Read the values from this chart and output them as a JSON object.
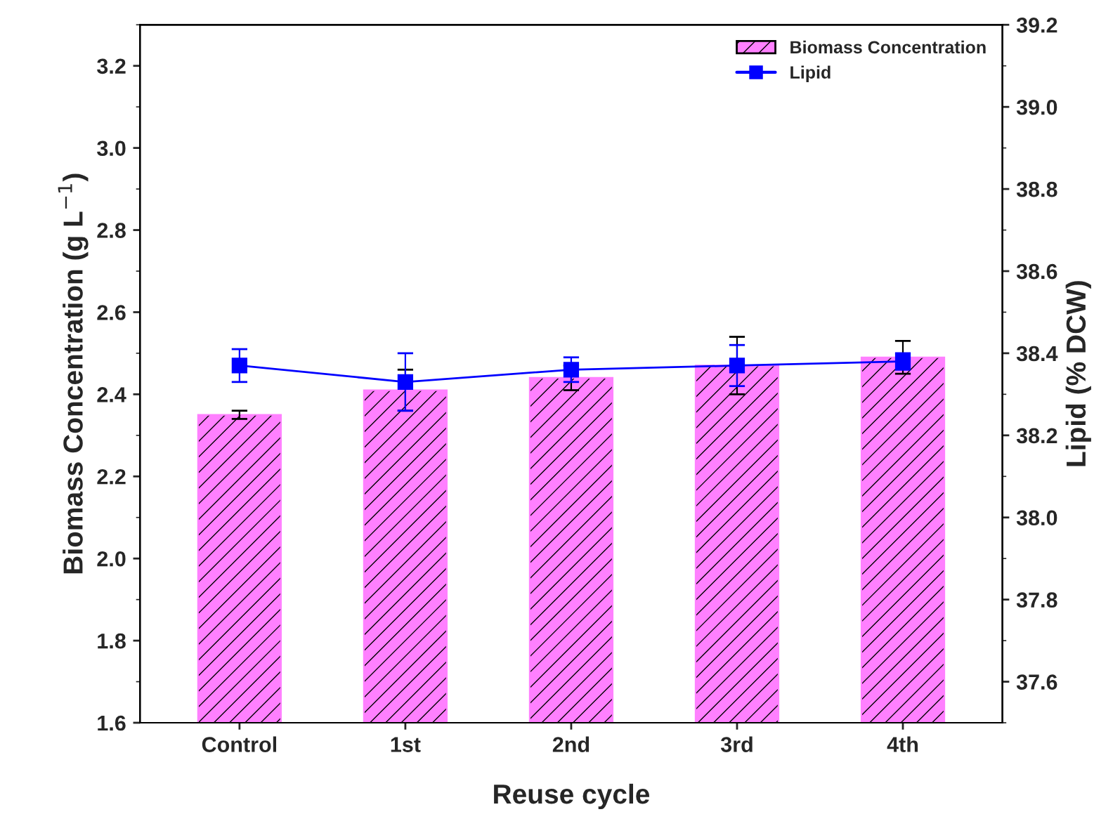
{
  "chart_data": {
    "type": "bar",
    "xlabel": "Reuse cycle",
    "ylabel": "Biomass Concentration (g L$^{−1}$)",
    "y2label": "Lipid (% DCW)",
    "categories": [
      "Control",
      "1st",
      "2nd",
      "3rd",
      "4th"
    ],
    "series": [
      {
        "name": "Biomass Concentration",
        "color": "#ff80ff",
        "values": [
          2.35,
          2.41,
          2.44,
          2.47,
          2.49
        ],
        "errors": [
          0.01,
          0.05,
          0.03,
          0.07,
          0.04
        ]
      },
      {
        "name": "Lipid",
        "type": "line",
        "axis": "y2",
        "color": "#0000ff",
        "marker": "square",
        "values": [
          38.37,
          38.33,
          38.36,
          38.37,
          38.38
        ],
        "errors": [
          0.04,
          0.07,
          0.03,
          0.05,
          0.02
        ]
      }
    ],
    "ylim": [
      1.6,
      3.3
    ],
    "yticks": [
      1.6,
      1.8,
      {
        "value": 2,
        "label": "2.0"
      },
      2.2,
      2.4,
      2.6,
      2.8,
      {
        "value": 3,
        "label": "3.0"
      },
      3.2
    ],
    "y2lim": [
      37.5,
      39.2
    ],
    "y2ticks": [
      37.6,
      37.8,
      {
        "value": 38,
        "label": "38.0"
      },
      38.2,
      38.4,
      38.6,
      38.8,
      {
        "value": 39,
        "label": "39.0"
      },
      39.2
    ],
    "grid": false,
    "legend": "top right"
  }
}
